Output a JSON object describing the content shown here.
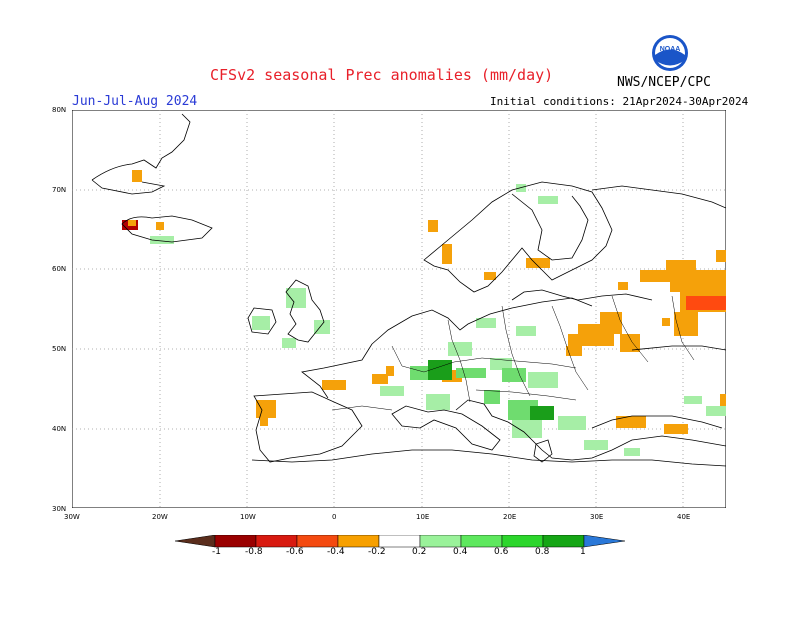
{
  "header": {
    "title": "CFSv2 seasonal Prec anomalies (mm/day)",
    "season": "Jun-Jul-Aug 2024",
    "initial_conditions": "Initial conditions: 21Apr2024-30Apr2024",
    "agency": "NWS/NCEP/CPC",
    "logo_text": "NOAA"
  },
  "axes": {
    "lat_labels": [
      "80N",
      "70N",
      "60N",
      "50N",
      "40N",
      "30N"
    ],
    "lon_labels": [
      "30W",
      "20W",
      "10W",
      "0",
      "10E",
      "20E",
      "30E",
      "40E"
    ]
  },
  "colorbar": {
    "labels": [
      "-1",
      "-0.8",
      "-0.6",
      "-0.4",
      "-0.2",
      "0.2",
      "0.4",
      "0.6",
      "0.8",
      "1"
    ],
    "colors": [
      "#5a2d1c",
      "#9a0000",
      "#d81a10",
      "#f44a10",
      "#f7a000",
      "#ffffff",
      "#9af29a",
      "#5ee85e",
      "#2cd62c",
      "#15a615",
      "#2a78d8"
    ]
  },
  "anomaly_colors": {
    "orange": "#f5a10a",
    "red": "#ff4a10",
    "dark_red": "#b20000",
    "light_green": "#a6eea6",
    "green": "#6fdc6f",
    "dark_green": "#1a9e1a"
  }
}
